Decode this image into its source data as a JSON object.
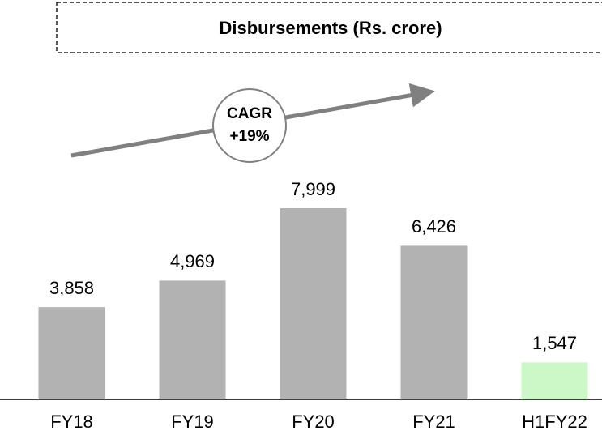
{
  "chart_data": {
    "type": "bar",
    "title": "Disbursements (Rs. crore)",
    "categories": [
      "FY18",
      "FY19",
      "FY20",
      "FY21",
      "H1FY22"
    ],
    "values": [
      3858,
      4969,
      7999,
      6426,
      1547
    ],
    "value_labels": [
      "3,858",
      "4,969",
      "7,999",
      "6,426",
      "1,547"
    ],
    "colors": [
      "#b2b2b2",
      "#b2b2b2",
      "#b2b2b2",
      "#b2b2b2",
      "#ccf7c6"
    ],
    "annotation": [
      "CAGR",
      "+19%"
    ]
  }
}
